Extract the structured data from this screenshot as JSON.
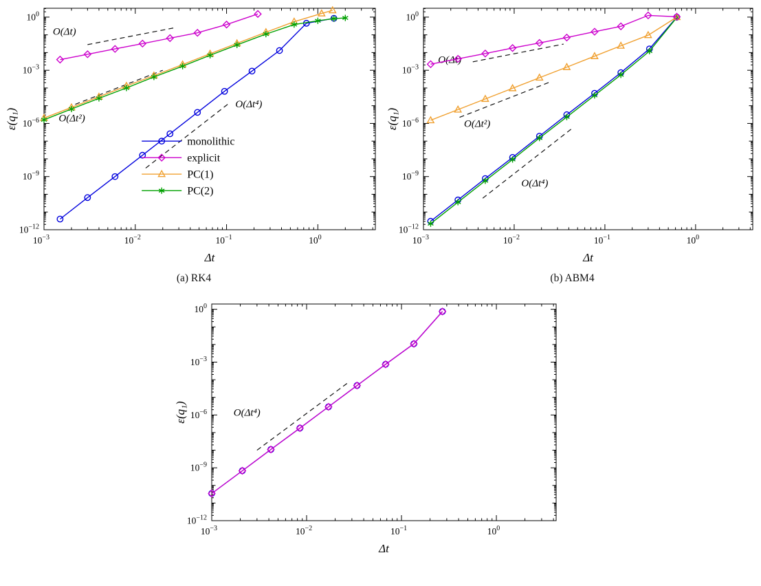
{
  "figure": {
    "captions": {
      "a": "(a) RK4",
      "b": "(b) ABM4"
    }
  },
  "colors": {
    "monolithic": "#0000dd",
    "explicit": "#cc00cc",
    "pc1": "#f0a030",
    "pc2": "#00a000",
    "guide": "#111111"
  },
  "chart_data": [
    {
      "id": "a",
      "type": "line",
      "title": "",
      "xlabel": "Δt",
      "ylabel": "ε(q₁)",
      "x_scale": "log",
      "y_scale": "log",
      "x_log_range": [
        -3,
        0.63
      ],
      "y_log_range": [
        -12,
        0.5
      ],
      "x_labeled_exponents": [
        -3,
        -2,
        -1,
        0
      ],
      "y_labeled_exponents": [
        -12,
        -9,
        -6,
        -3,
        0
      ],
      "series": [
        {
          "name": "monolithic",
          "label": "monolithic",
          "color": "#0000dd",
          "marker": "circle",
          "x": [
            0.0015,
            0.003,
            0.006,
            0.012,
            0.024,
            0.048,
            0.095,
            0.19,
            0.38,
            0.75,
            1.5
          ],
          "y": [
            4e-12,
            6.5e-11,
            1e-09,
            1.6e-08,
            2.6e-07,
            4.2e-06,
            6.5e-05,
            0.0009,
            0.013,
            0.45,
            0.85
          ]
        },
        {
          "name": "explicit",
          "label": "explicit",
          "color": "#cc00cc",
          "marker": "diamond",
          "x": [
            0.0015,
            0.003,
            0.006,
            0.012,
            0.024,
            0.048,
            0.1,
            0.22
          ],
          "y": [
            0.004,
            0.008,
            0.016,
            0.032,
            0.065,
            0.13,
            0.38,
            1.5
          ]
        },
        {
          "name": "pc1",
          "label": "PC(1)",
          "color": "#f0a030",
          "marker": "triangle",
          "x": [
            0.001,
            0.002,
            0.004,
            0.008,
            0.016,
            0.033,
            0.066,
            0.13,
            0.27,
            0.55,
            1.1,
            1.45
          ],
          "y": [
            2e-06,
            8e-06,
            3.2e-05,
            0.00013,
            0.0005,
            0.0021,
            0.0085,
            0.033,
            0.14,
            0.55,
            1.6,
            2.4
          ]
        },
        {
          "name": "pc2",
          "label": "PC(2)",
          "color": "#00a000",
          "marker": "asterisk",
          "x": [
            0.001,
            0.002,
            0.004,
            0.008,
            0.016,
            0.033,
            0.066,
            0.13,
            0.27,
            0.55,
            1.0,
            1.5,
            2.0
          ],
          "y": [
            1.6e-06,
            6.5e-06,
            2.6e-05,
            0.0001,
            0.00042,
            0.0017,
            0.007,
            0.027,
            0.11,
            0.38,
            0.62,
            0.82,
            0.9
          ]
        }
      ],
      "guides": [
        {
          "label": "O(Δt)",
          "x1": 0.003,
          "y1": 0.028,
          "x2": 0.028,
          "y2": 0.26,
          "label_x": 0.00125,
          "label_y": 0.1
        },
        {
          "label": "O(Δt²)",
          "x1": 0.0022,
          "y1": 1.2e-05,
          "x2": 0.02,
          "y2": 0.001,
          "label_x": 0.00145,
          "label_y": 1.3e-06
        },
        {
          "label": "O(Δt⁴)",
          "x1": 0.013,
          "y1": 3e-09,
          "x2": 0.105,
          "y2": 1.3e-05,
          "label_x": 0.125,
          "label_y": 8e-06
        }
      ],
      "legend": {
        "pos": [
          0.295,
          0.6
        ],
        "items": [
          "monolithic",
          "explicit",
          "pc1",
          "pc2"
        ]
      }
    },
    {
      "id": "b",
      "type": "line",
      "title": "",
      "xlabel": "Δt",
      "ylabel": "ε(q₁)",
      "x_scale": "log",
      "y_scale": "log",
      "x_log_range": [
        -3,
        0.63
      ],
      "y_log_range": [
        -12,
        0.5
      ],
      "x_labeled_exponents": [
        -3,
        -2,
        -1,
        0
      ],
      "y_labeled_exponents": [
        -12,
        -9,
        -6,
        -3,
        0
      ],
      "series": [
        {
          "name": "monolithic",
          "label": "monolithic",
          "color": "#0000dd",
          "marker": "circle",
          "x": [
            0.0012,
            0.0024,
            0.0048,
            0.0096,
            0.019,
            0.038,
            0.077,
            0.15,
            0.31,
            0.62
          ],
          "y": [
            3e-12,
            4.8e-11,
            7.7e-10,
            1.2e-08,
            1.9e-07,
            3.1e-06,
            5e-05,
            0.00073,
            0.016,
            1.0
          ]
        },
        {
          "name": "pc2",
          "label": "PC(2)",
          "color": "#00a000",
          "marker": "asterisk",
          "x": [
            0.0012,
            0.0024,
            0.0048,
            0.0096,
            0.019,
            0.038,
            0.077,
            0.15,
            0.31,
            0.62
          ],
          "y": [
            2.2e-12,
            3.6e-11,
            5.8e-10,
            9.2e-09,
            1.5e-07,
            2.3e-06,
            3.8e-05,
            0.00055,
            0.012,
            0.95
          ]
        },
        {
          "name": "pc1",
          "label": "PC(1)",
          "color": "#f0a030",
          "marker": "triangle",
          "x": [
            0.0012,
            0.0024,
            0.0048,
            0.0096,
            0.019,
            0.038,
            0.077,
            0.15,
            0.3,
            0.62
          ],
          "y": [
            1.5e-06,
            6e-06,
            2.4e-05,
            9.6e-05,
            0.00038,
            0.0015,
            0.0062,
            0.024,
            0.095,
            1.0
          ]
        },
        {
          "name": "explicit",
          "label": "explicit",
          "color": "#cc00cc",
          "marker": "diamond",
          "x": [
            0.0012,
            0.0024,
            0.0048,
            0.0096,
            0.019,
            0.038,
            0.077,
            0.15,
            0.3,
            0.62
          ],
          "y": [
            0.0022,
            0.0044,
            0.0088,
            0.018,
            0.035,
            0.07,
            0.15,
            0.3,
            1.25,
            1.05
          ]
        }
      ],
      "guides": [
        {
          "label": "O(Δt)",
          "x1": 0.0035,
          "y1": 0.003,
          "x2": 0.035,
          "y2": 0.03,
          "label_x": 0.00145,
          "label_y": 0.0026
        },
        {
          "label": "O(Δt²)",
          "x1": 0.0025,
          "y1": 2.2e-06,
          "x2": 0.025,
          "y2": 0.00022,
          "label_x": 0.0028,
          "label_y": 6.5e-07
        },
        {
          "label": "O(Δt⁴)",
          "x1": 0.0045,
          "y1": 6e-11,
          "x2": 0.045,
          "y2": 6e-07,
          "label_x": 0.012,
          "label_y": 2.8e-10
        }
      ]
    },
    {
      "id": "c",
      "type": "line",
      "title": "",
      "xlabel": "Δt",
      "ylabel": "ε(q₁)",
      "x_scale": "log",
      "y_scale": "log",
      "x_log_range": [
        -3,
        0.63
      ],
      "y_log_range": [
        -12,
        0.3
      ],
      "x_labeled_exponents": [
        -3,
        -2,
        -1,
        0
      ],
      "y_labeled_exponents": [
        -12,
        -9,
        -6,
        -3,
        0
      ],
      "series": [
        {
          "name": "monolithic",
          "label": "monolithic",
          "color": "#0000dd",
          "marker": "circle",
          "x": [
            0.001,
            0.0021,
            0.0042,
            0.0085,
            0.017,
            0.034,
            0.068,
            0.135,
            0.27
          ],
          "y": [
            3.5e-11,
            6.8e-10,
            1.1e-08,
            1.8e-07,
            2.9e-06,
            4.7e-05,
            0.00075,
            0.011,
            0.75
          ]
        },
        {
          "name": "explicit",
          "label": "explicit",
          "color": "#cc00cc",
          "marker": "diamond",
          "x": [
            0.001,
            0.0021,
            0.0042,
            0.0085,
            0.017,
            0.034,
            0.068,
            0.135,
            0.27
          ],
          "y": [
            3.5e-11,
            6.8e-10,
            1.1e-08,
            1.8e-07,
            2.9e-06,
            4.7e-05,
            0.00075,
            0.011,
            0.75
          ]
        }
      ],
      "guides": [
        {
          "label": "O(Δt⁴)",
          "x1": 0.003,
          "y1": 1e-08,
          "x2": 0.027,
          "y2": 6.5e-05,
          "label_x": 0.0017,
          "label_y": 9e-07
        }
      ]
    }
  ]
}
